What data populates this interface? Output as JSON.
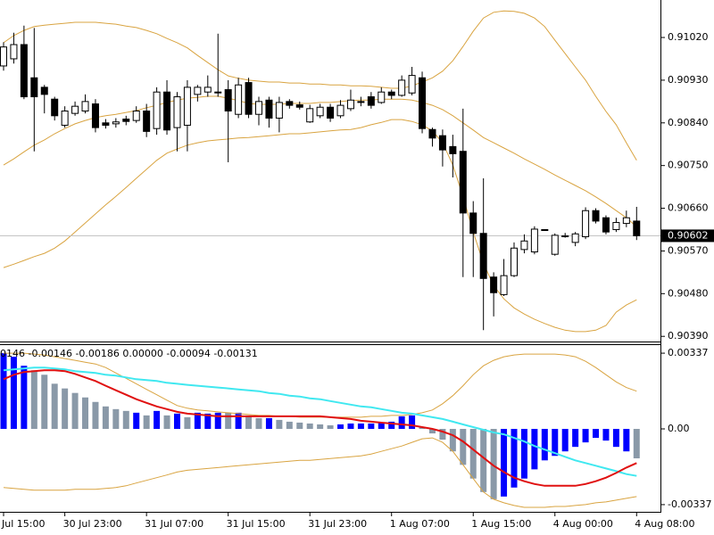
{
  "chart_data": [
    {
      "type": "candlestick",
      "categories": [
        "Jul 15:00",
        null,
        null,
        null,
        null,
        null,
        "30 Jul 23:00",
        null,
        null,
        null,
        null,
        null,
        null,
        null,
        "31 Jul 07:00",
        null,
        null,
        null,
        null,
        null,
        null,
        null,
        "31 Jul 15:00",
        null,
        null,
        null,
        null,
        null,
        null,
        null,
        "31 Jul 23:00",
        null,
        null,
        null,
        null,
        null,
        null,
        null,
        "1 Aug 07:00",
        null,
        null,
        null,
        null,
        null,
        null,
        null,
        "1 Aug 15:00",
        null,
        null,
        null,
        null,
        null,
        null,
        null,
        "4 Aug 00:00",
        null,
        null,
        null,
        null,
        null,
        null,
        null,
        "4 Aug 08:00"
      ],
      "open": [
        0.9096,
        0.90975,
        0.91005,
        0.90935,
        0.90915,
        0.9089,
        0.90835,
        0.9086,
        0.90865,
        0.9088,
        0.9084,
        0.90838,
        0.90848,
        0.90845,
        0.90865,
        0.90828,
        0.90905,
        0.9083,
        0.90835,
        0.909,
        0.90905,
        0.90905,
        0.9091,
        0.90858,
        0.90925,
        0.90858,
        0.90888,
        0.9085,
        0.90885,
        0.90878,
        0.90842,
        0.90855,
        0.90873,
        0.90855,
        0.9087,
        0.90885,
        0.90895,
        0.90883,
        0.90905,
        0.90898,
        0.90903,
        0.90935,
        0.90826,
        0.90813,
        0.9079,
        0.9078,
        0.9065,
        0.90607,
        0.90515,
        0.90478,
        0.90518,
        0.90573,
        0.90568,
        0.90615,
        0.90563,
        0.906,
        0.90588,
        0.906,
        0.90655,
        0.9064,
        0.90615,
        0.90628,
        0.90633
      ],
      "high": [
        0.9101,
        0.9103,
        0.91045,
        0.9104,
        0.9092,
        0.90895,
        0.90875,
        0.90885,
        0.909,
        0.9089,
        0.90848,
        0.9085,
        0.90855,
        0.90875,
        0.9088,
        0.90915,
        0.9093,
        0.90905,
        0.9093,
        0.9092,
        0.9094,
        0.91028,
        0.9093,
        0.90935,
        0.90935,
        0.90895,
        0.90895,
        0.90895,
        0.9089,
        0.90885,
        0.90878,
        0.9088,
        0.9088,
        0.90888,
        0.9091,
        0.90895,
        0.90905,
        0.90915,
        0.9091,
        0.9094,
        0.90958,
        0.90948,
        0.9083,
        0.90826,
        0.90815,
        0.9087,
        0.90675,
        0.90723,
        0.90525,
        0.90553,
        0.90588,
        0.90605,
        0.90622,
        0.90615,
        0.90607,
        0.90608,
        0.9061,
        0.90662,
        0.9066,
        0.90645,
        0.9064,
        0.90655,
        0.90663
      ],
      "low": [
        0.9095,
        0.90965,
        0.9089,
        0.9078,
        0.9086,
        0.90845,
        0.9083,
        0.90855,
        0.9086,
        0.9082,
        0.90828,
        0.9083,
        0.90835,
        0.9084,
        0.9081,
        0.90815,
        0.90815,
        0.9078,
        0.9078,
        0.90885,
        0.90895,
        0.90895,
        0.90757,
        0.9085,
        0.9085,
        0.90835,
        0.9083,
        0.9082,
        0.9087,
        0.90868,
        0.9084,
        0.9085,
        0.90842,
        0.9085,
        0.90865,
        0.90875,
        0.9087,
        0.9088,
        0.9089,
        0.90895,
        0.90898,
        0.90818,
        0.9079,
        0.90748,
        0.90725,
        0.90515,
        0.90515,
        0.90403,
        0.90432,
        0.90475,
        0.90515,
        0.90565,
        0.90563,
        0.90613,
        0.9056,
        0.90598,
        0.9058,
        0.90595,
        0.90628,
        0.90605,
        0.9061,
        0.9062,
        0.90593
      ],
      "close": [
        0.91,
        0.91005,
        0.90895,
        0.90895,
        0.909,
        0.90855,
        0.90865,
        0.90875,
        0.90885,
        0.9083,
        0.90835,
        0.90842,
        0.90843,
        0.90865,
        0.90822,
        0.90905,
        0.90825,
        0.90895,
        0.90915,
        0.90915,
        0.90915,
        0.90905,
        0.90865,
        0.9092,
        0.90858,
        0.90885,
        0.9085,
        0.90883,
        0.90877,
        0.90873,
        0.9087,
        0.90873,
        0.9085,
        0.90877,
        0.90888,
        0.90883,
        0.90877,
        0.90905,
        0.90898,
        0.9093,
        0.9094,
        0.90828,
        0.90808,
        0.90783,
        0.90775,
        0.9065,
        0.90607,
        0.90512,
        0.90482,
        0.90518,
        0.90576,
        0.90591,
        0.90616,
        0.90615,
        0.90603,
        0.90602,
        0.90606,
        0.90655,
        0.90633,
        0.9061,
        0.9063,
        0.9064,
        0.90602
      ],
      "up_color": "#ffffff",
      "down_color": "#000000",
      "candle_line_color": "#000000",
      "bands": {
        "color": "#d9a441",
        "upper": [
          0.91009,
          0.91024,
          0.91035,
          0.91043,
          0.91046,
          0.91048,
          0.9105,
          0.91052,
          0.91052,
          0.91052,
          0.9105,
          0.91048,
          0.91044,
          0.91041,
          0.91035,
          0.91028,
          0.91018,
          0.91009,
          0.90998,
          0.90982,
          0.90967,
          0.90952,
          0.90939,
          0.90934,
          0.9093,
          0.90928,
          0.90926,
          0.90926,
          0.90924,
          0.90924,
          0.90922,
          0.90922,
          0.9092,
          0.9092,
          0.90918,
          0.90918,
          0.90917,
          0.90915,
          0.90913,
          0.90913,
          0.90918,
          0.90926,
          0.90935,
          0.90949,
          0.90971,
          0.91001,
          0.91033,
          0.91061,
          0.91073,
          0.91076,
          0.91075,
          0.91071,
          0.91061,
          0.91043,
          0.91014,
          0.90986,
          0.90958,
          0.9093,
          0.90896,
          0.90864,
          0.90836,
          0.90798,
          0.90761
        ],
        "middle": [
          0.90751,
          0.90764,
          0.90779,
          0.90793,
          0.90804,
          0.90817,
          0.90828,
          0.90838,
          0.90845,
          0.90851,
          0.90855,
          0.90858,
          0.90862,
          0.90866,
          0.90872,
          0.90877,
          0.90883,
          0.90888,
          0.90892,
          0.90894,
          0.90896,
          0.90896,
          0.90892,
          0.90887,
          0.90881,
          0.90879,
          0.90879,
          0.90879,
          0.90881,
          0.90881,
          0.90881,
          0.90883,
          0.90883,
          0.90885,
          0.90887,
          0.90888,
          0.90888,
          0.9089,
          0.9089,
          0.9089,
          0.90888,
          0.90883,
          0.90877,
          0.90868,
          0.90855,
          0.9084,
          0.90825,
          0.90809,
          0.90798,
          0.90787,
          0.90776,
          0.90764,
          0.90753,
          0.90742,
          0.9073,
          0.90719,
          0.90708,
          0.90697,
          0.90684,
          0.9067,
          0.90655,
          0.9064,
          0.90621
        ],
        "lower": [
          0.90535,
          0.90542,
          0.9055,
          0.90558,
          0.90565,
          0.90576,
          0.90591,
          0.9061,
          0.90629,
          0.90648,
          0.90667,
          0.90685,
          0.90704,
          0.90723,
          0.90742,
          0.90761,
          0.90776,
          0.90785,
          0.90793,
          0.90798,
          0.90802,
          0.90804,
          0.90806,
          0.90808,
          0.90809,
          0.90811,
          0.90813,
          0.90815,
          0.90817,
          0.90817,
          0.90819,
          0.90821,
          0.90823,
          0.90825,
          0.90826,
          0.9083,
          0.90836,
          0.90841,
          0.90847,
          0.90847,
          0.90843,
          0.90836,
          0.90823,
          0.90798,
          0.90751,
          0.90685,
          0.9061,
          0.90544,
          0.90497,
          0.90469,
          0.9045,
          0.90437,
          0.90426,
          0.90417,
          0.90409,
          0.90403,
          0.904,
          0.904,
          0.90403,
          0.90413,
          0.90441,
          0.90456,
          0.90467
        ]
      },
      "current_price": 0.90602,
      "current_price_color": "#c0c0c0",
      "ylim": [
        0.90381,
        0.91099
      ],
      "yticks": [
        {
          "value": 0.9102,
          "label": "0.91020"
        },
        {
          "value": 0.9093,
          "label": "0.90930"
        },
        {
          "value": 0.9084,
          "label": "0.90840"
        },
        {
          "value": 0.9075,
          "label": "0.90750"
        },
        {
          "value": 0.9066,
          "label": "0.90660"
        },
        {
          "value": 0.9057,
          "label": "0.90570"
        },
        {
          "value": 0.9048,
          "label": "0.90480"
        },
        {
          "value": 0.9039,
          "label": "0.90390"
        }
      ],
      "grid": false
    },
    {
      "type": "oscillator",
      "header": "0146 -0.00146 -0.00186 0.00000 -0.00094 -0.00131",
      "histogram": {
        "values": [
          0.00337,
          0.00321,
          0.00281,
          0.00261,
          0.00241,
          0.00201,
          0.0018,
          0.0016,
          0.0014,
          0.0012,
          0.001,
          0.00088,
          0.0008,
          0.00072,
          0.0006,
          0.0008,
          0.0006,
          0.00068,
          0.00052,
          0.00072,
          0.00068,
          0.00072,
          0.00072,
          0.00072,
          0.0006,
          0.00048,
          0.00048,
          0.0004,
          0.00032,
          0.00028,
          0.00024,
          0.0002,
          0.00016,
          0.0002,
          0.00024,
          0.00024,
          0.00024,
          0.00028,
          0.00032,
          0.00056,
          0.0006,
          8e-05,
          -0.0002,
          -0.00048,
          -0.001,
          -0.0016,
          -0.00221,
          -0.00281,
          -0.00313,
          -0.00301,
          -0.00261,
          -0.00221,
          -0.0018,
          -0.0014,
          -0.0012,
          -0.001,
          -0.0008,
          -0.0006,
          -0.0004,
          -0.00052,
          -0.0008,
          -0.001,
          -0.00131
        ],
        "colors": [
          "#0000ff",
          "#0000ff",
          "#0000ff",
          "#8a99a8",
          "#8a99a8",
          "#8a99a8",
          "#8a99a8",
          "#8a99a8",
          "#8a99a8",
          "#8a99a8",
          "#8a99a8",
          "#8a99a8",
          "#8a99a8",
          "#0000ff",
          "#8a99a8",
          "#0000ff",
          "#8a99a8",
          "#0000ff",
          "#8a99a8",
          "#0000ff",
          "#0000ff",
          "#0000ff",
          "#8a99a8",
          "#0000ff",
          "#8a99a8",
          "#8a99a8",
          "#0000ff",
          "#8a99a8",
          "#8a99a8",
          "#8a99a8",
          "#8a99a8",
          "#8a99a8",
          "#8a99a8",
          "#0000ff",
          "#0000ff",
          "#0000ff",
          "#0000ff",
          "#0000ff",
          "#0000ff",
          "#0000ff",
          "#0000ff",
          "#8a99a8",
          "#8a99a8",
          "#8a99a8",
          "#8a99a8",
          "#8a99a8",
          "#8a99a8",
          "#8a99a8",
          "#8a99a8",
          "#0000ff",
          "#0000ff",
          "#0000ff",
          "#0000ff",
          "#0000ff",
          "#0000ff",
          "#0000ff",
          "#0000ff",
          "#0000ff",
          "#0000ff",
          "#0000ff",
          "#0000ff",
          "#0000ff",
          "#8a99a8"
        ]
      },
      "lines": [
        {
          "color": "#40e8f0",
          "values": [
            0.00261,
            0.00265,
            0.00269,
            0.00273,
            0.00273,
            0.00269,
            0.00265,
            0.00257,
            0.00253,
            0.00249,
            0.00241,
            0.00237,
            0.00229,
            0.00221,
            0.00217,
            0.00213,
            0.00205,
            0.00201,
            0.00196,
            0.00192,
            0.00188,
            0.00184,
            0.0018,
            0.00176,
            0.00172,
            0.00168,
            0.0016,
            0.00156,
            0.00148,
            0.00144,
            0.00136,
            0.00132,
            0.00124,
            0.00116,
            0.00108,
            0.001,
            0.00096,
            0.00088,
            0.0008,
            0.00072,
            0.00068,
            0.0006,
            0.00052,
            0.00044,
            0.00032,
            0.0002,
            8e-05,
            -4e-05,
            -0.00016,
            -0.00024,
            -0.0004,
            -0.00056,
            -0.00076,
            -0.00092,
            -0.00108,
            -0.00124,
            -0.0014,
            -0.00152,
            -0.00164,
            -0.00176,
            -0.00188,
            -0.00201,
            -0.00209
          ]
        },
        {
          "color": "#e01010",
          "values": [
            0.00221,
            0.00241,
            0.00253,
            0.00257,
            0.00261,
            0.00261,
            0.00257,
            0.00245,
            0.00229,
            0.00213,
            0.00192,
            0.00172,
            0.00152,
            0.00132,
            0.00116,
            0.001,
            0.00088,
            0.00076,
            0.00068,
            0.00064,
            0.0006,
            0.00056,
            0.00056,
            0.00056,
            0.00056,
            0.00056,
            0.00056,
            0.00056,
            0.00056,
            0.00056,
            0.00056,
            0.00056,
            0.00052,
            0.00048,
            0.00044,
            0.00036,
            0.00032,
            0.00028,
            0.00024,
            0.0002,
            0.00016,
            8e-05,
            0,
            -0.00012,
            -0.00028,
            -0.00056,
            -0.00092,
            -0.00128,
            -0.00164,
            -0.00192,
            -0.00217,
            -0.00233,
            -0.00245,
            -0.00253,
            -0.00253,
            -0.00253,
            -0.00253,
            -0.00245,
            -0.00233,
            -0.00217,
            -0.00196,
            -0.00172,
            -0.00152
          ]
        }
      ],
      "bands": {
        "color": "#d9a441",
        "upper": [
          0.00337,
          0.00337,
          0.00337,
          0.00333,
          0.00329,
          0.00321,
          0.00313,
          0.00305,
          0.00297,
          0.00289,
          0.00273,
          0.00249,
          0.00225,
          0.00201,
          0.00176,
          0.00152,
          0.00128,
          0.00104,
          0.00092,
          0.00084,
          0.0008,
          0.00076,
          0.00072,
          0.00068,
          0.00064,
          0.0006,
          0.0006,
          0.00056,
          0.00056,
          0.00052,
          0.00052,
          0.00052,
          0.00052,
          0.00052,
          0.00052,
          0.00052,
          0.00056,
          0.00056,
          0.0006,
          0.0006,
          0.00064,
          0.00072,
          0.00084,
          0.00112,
          0.00148,
          0.00192,
          0.00241,
          0.00281,
          0.00305,
          0.00321,
          0.00329,
          0.00333,
          0.00333,
          0.00333,
          0.00333,
          0.00329,
          0.00321,
          0.00301,
          0.00273,
          0.00241,
          0.00209,
          0.00184,
          0.00168
        ],
        "lower": [
          -0.00261,
          -0.00265,
          -0.00269,
          -0.00273,
          -0.00273,
          -0.00273,
          -0.00273,
          -0.00269,
          -0.00269,
          -0.00269,
          -0.00265,
          -0.00261,
          -0.00253,
          -0.00241,
          -0.00229,
          -0.00217,
          -0.00205,
          -0.00192,
          -0.00184,
          -0.0018,
          -0.00176,
          -0.00172,
          -0.00168,
          -0.00164,
          -0.0016,
          -0.00156,
          -0.00152,
          -0.00148,
          -0.00144,
          -0.0014,
          -0.0014,
          -0.00136,
          -0.00132,
          -0.00128,
          -0.00124,
          -0.0012,
          -0.00112,
          -0.001,
          -0.00088,
          -0.00076,
          -0.0006,
          -0.00044,
          -0.0004,
          -0.0006,
          -0.001,
          -0.0016,
          -0.00221,
          -0.00281,
          -0.00313,
          -0.00329,
          -0.00341,
          -0.00349,
          -0.00349,
          -0.00349,
          -0.00345,
          -0.00345,
          -0.00341,
          -0.00337,
          -0.00329,
          -0.00325,
          -0.00317,
          -0.00309,
          -0.00301
        ]
      },
      "ylim": [
        -0.00369,
        0.00377
      ],
      "yticks": [
        0.00337,
        {
          "value": 0,
          "label": "0.00"
        },
        -0.00337
      ],
      "grid": false
    }
  ]
}
